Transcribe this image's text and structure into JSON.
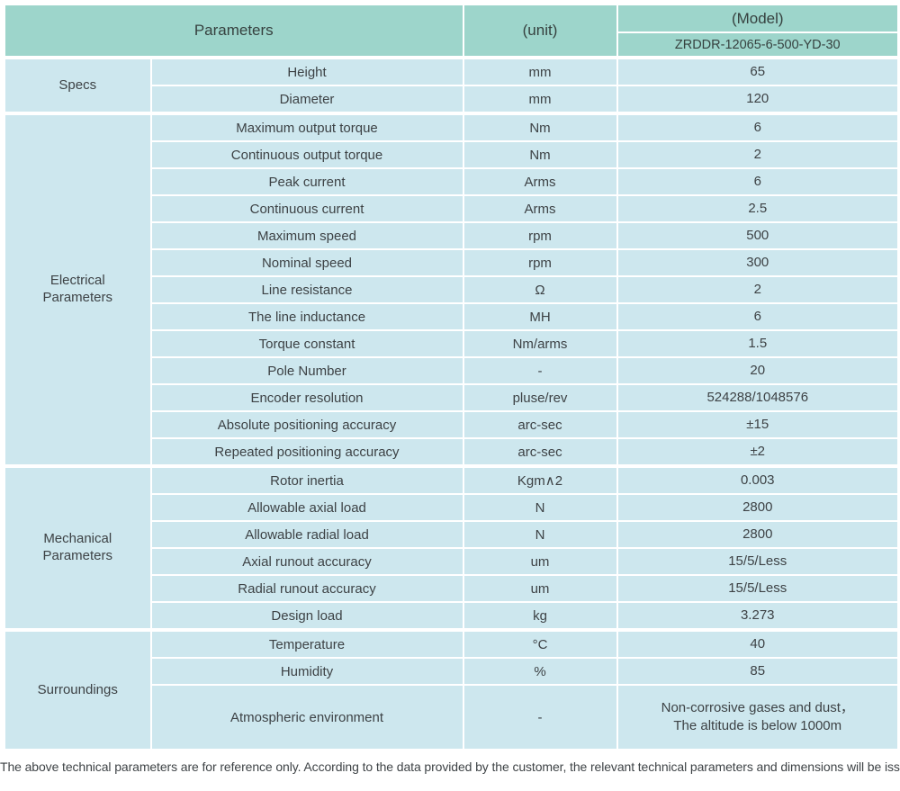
{
  "colors": {
    "header_bg": "#9dd5cb",
    "row_bg": "#cde7ee",
    "separator": "#ffffff",
    "text": "#3d4245"
  },
  "table": {
    "header": {
      "parameters": "Parameters",
      "unit": "(unit)",
      "model_label": "(Model)",
      "model_value": "ZRDDR-12065-6-500-YD-30"
    },
    "sections": [
      {
        "label": "Specs",
        "rows": [
          {
            "param": "Height",
            "unit": "mm",
            "value": "65"
          },
          {
            "param": "Diameter",
            "unit": "mm",
            "value": "120"
          }
        ]
      },
      {
        "label": "Electrical\nParameters",
        "rows": [
          {
            "param": "Maximum output torque",
            "unit": "Nm",
            "value": "6"
          },
          {
            "param": "Continuous output torque",
            "unit": "Nm",
            "value": "2"
          },
          {
            "param": "Peak current",
            "unit": "Arms",
            "value": "6"
          },
          {
            "param": "Continuous current",
            "unit": "Arms",
            "value": "2.5"
          },
          {
            "param": "Maximum speed",
            "unit": "rpm",
            "value": "500"
          },
          {
            "param": "Nominal speed",
            "unit": "rpm",
            "value": "300"
          },
          {
            "param": "Line resistance",
            "unit": "Ω",
            "value": "2"
          },
          {
            "param": "The line inductance",
            "unit": "MH",
            "value": "6"
          },
          {
            "param": "Torque constant",
            "unit": "Nm/arms",
            "value": "1.5"
          },
          {
            "param": "Pole Number",
            "unit": "-",
            "value": "20"
          },
          {
            "param": "Encoder resolution",
            "unit": "pluse/rev",
            "value": "524288/1048576"
          },
          {
            "param": "Absolute positioning accuracy",
            "unit": "arc-sec",
            "value": "±15"
          },
          {
            "param": "Repeated positioning accuracy",
            "unit": "arc-sec",
            "value": "±2"
          }
        ]
      },
      {
        "label": "Mechanical\nParameters",
        "rows": [
          {
            "param": "Rotor inertia",
            "unit": "Kgm∧2",
            "value": "0.003"
          },
          {
            "param": "Allowable axial load",
            "unit": "N",
            "value": "2800"
          },
          {
            "param": "Allowable radial load",
            "unit": "N",
            "value": "2800"
          },
          {
            "param": "Axial runout accuracy",
            "unit": "um",
            "value": "15/5/Less"
          },
          {
            "param": "Radial runout accuracy",
            "unit": "um",
            "value": "15/5/Less"
          },
          {
            "param": "Design load",
            "unit": "kg",
            "value": "3.273"
          }
        ]
      },
      {
        "label": "Surroundings",
        "rows": [
          {
            "param": "Temperature",
            "unit": "°C",
            "value": "40"
          },
          {
            "param": "Humidity",
            "unit": "%",
            "value": "85"
          },
          {
            "param": "Atmospheric environment",
            "unit": "-",
            "value": "Non-corrosive gases and dust，\nThe altitude is below 1000m"
          }
        ]
      }
    ]
  },
  "footer": {
    "note": "The above technical parameters are for reference only. According to the data provided by the customer, the relevant technical parameters and dimensions will be issued."
  }
}
